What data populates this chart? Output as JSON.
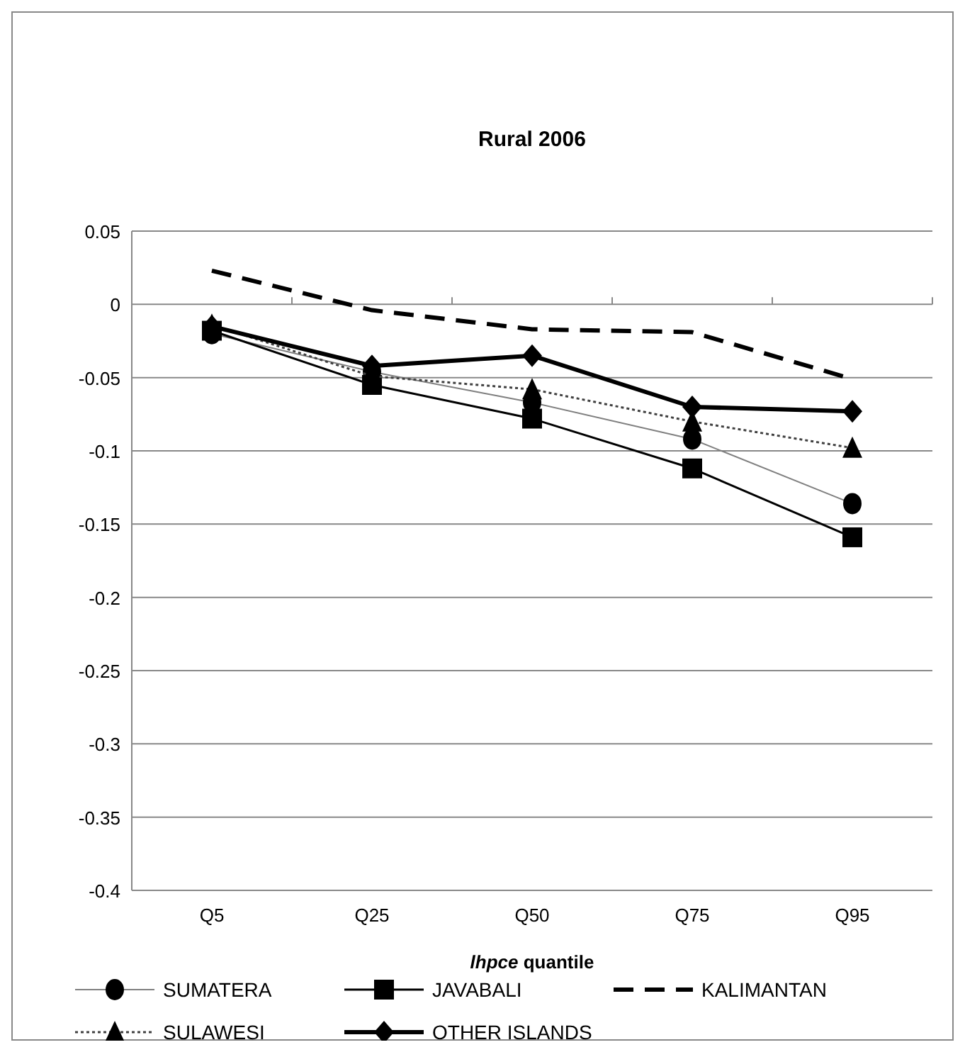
{
  "chart_data": {
    "type": "line",
    "title": "Rural 2006",
    "xlabel": "lhpce quantile",
    "categories": [
      "Q5",
      "Q25",
      "Q50",
      "Q75",
      "Q95"
    ],
    "series": [
      {
        "name": "SUMATERA",
        "color": "#808080",
        "marker": "circle",
        "line_style": "solid",
        "values": [
          -0.02,
          -0.046,
          -0.067,
          -0.092,
          -0.136
        ]
      },
      {
        "name": "JAVABALI",
        "color": "#000000",
        "marker": "square",
        "line_style": "solid",
        "values": [
          -0.018,
          -0.055,
          -0.078,
          -0.112,
          -0.159
        ]
      },
      {
        "name": "KALIMANTAN",
        "color": "#000000",
        "marker": "none",
        "line_style": "dashed",
        "values": [
          0.023,
          -0.004,
          -0.017,
          -0.019,
          -0.051
        ]
      },
      {
        "name": "SULAWESI",
        "color": "#404040",
        "marker": "triangle",
        "line_style": "dotted",
        "values": [
          -0.014,
          -0.049,
          -0.058,
          -0.08,
          -0.098
        ]
      },
      {
        "name": "OTHER  ISLANDS",
        "color": "#000000",
        "marker": "diamond",
        "line_style": "solid",
        "values": [
          -0.015,
          -0.042,
          -0.035,
          -0.07,
          -0.073
        ]
      }
    ],
    "ylim": [
      -0.4,
      0.05
    ],
    "yticks": [
      -0.4,
      -0.35,
      -0.3,
      -0.25,
      -0.2,
      -0.15,
      -0.1,
      -0.05,
      0,
      0.05
    ],
    "grid": "y",
    "legend": "bottom"
  }
}
